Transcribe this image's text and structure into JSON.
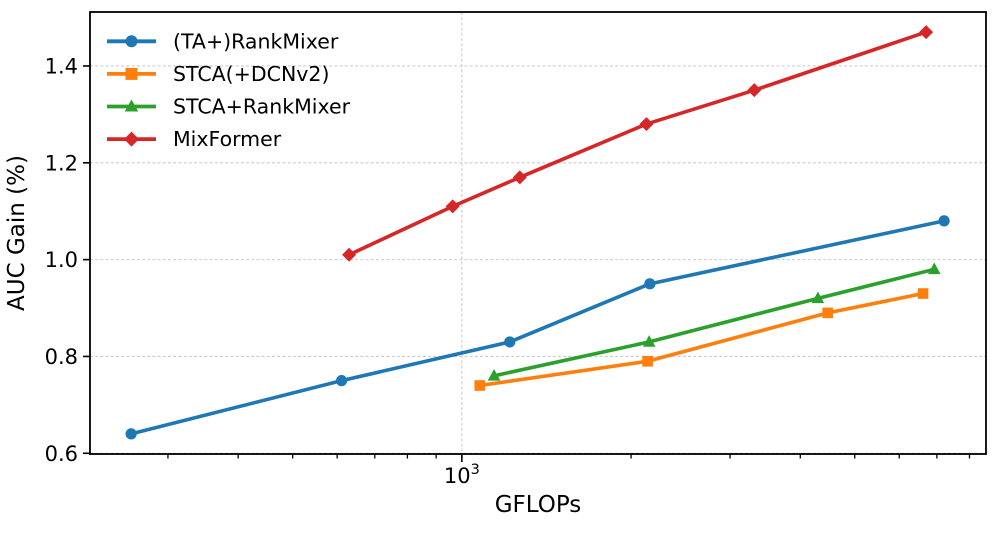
{
  "chart_data": {
    "type": "line",
    "title": "",
    "xlabel": "GFLOPs",
    "ylabel": "AUC Gain (%)",
    "x_scale": "log",
    "xlim": [
      218,
      8560
    ],
    "ylim": [
      0.5985,
      1.5115
    ],
    "y_ticks": [
      0.6,
      0.8,
      1.0,
      1.2,
      1.4
    ],
    "y_tick_labels": [
      "0.6",
      "0.8",
      "1.0",
      "1.2",
      "1.4"
    ],
    "x_major_ticks": [
      1000
    ],
    "x_major_tick_label": {
      "base": "10",
      "exp": "3"
    },
    "x_minor_ticks": [
      300,
      400,
      500,
      600,
      700,
      800,
      900,
      2000,
      3000,
      4000,
      5000,
      6000,
      7000,
      8000
    ],
    "grid": {
      "horizontal": true,
      "vertical_at_major": true,
      "color": "#cccccc",
      "style": "dashed"
    },
    "legend_position": "top-left",
    "legend_frame": false,
    "axis_color": "#000000",
    "series": [
      {
        "name": "(TA+)RankMixer",
        "color": "#1f77b4",
        "marker": "circle",
        "x": [
          258,
          611,
          1217,
          2160,
          7210
        ],
        "y": [
          0.64,
          0.75,
          0.83,
          0.95,
          1.08
        ]
      },
      {
        "name": "STCA(+DCNv2)",
        "color": "#ff7f0e",
        "marker": "square",
        "x": [
          1076,
          2140,
          4475,
          6615
        ],
        "y": [
          0.74,
          0.79,
          0.89,
          0.93
        ]
      },
      {
        "name": "STCA+RankMixer",
        "color": "#2ca02c",
        "marker": "triangle",
        "x": [
          1141,
          2154,
          4300,
          6925
        ],
        "y": [
          0.76,
          0.83,
          0.92,
          0.98
        ]
      },
      {
        "name": "MixFormer",
        "color": "#d62728",
        "marker": "diamond",
        "x": [
          630,
          963,
          1268,
          2130,
          3313,
          6697
        ],
        "y": [
          1.01,
          1.11,
          1.17,
          1.28,
          1.35,
          1.47
        ]
      }
    ]
  }
}
